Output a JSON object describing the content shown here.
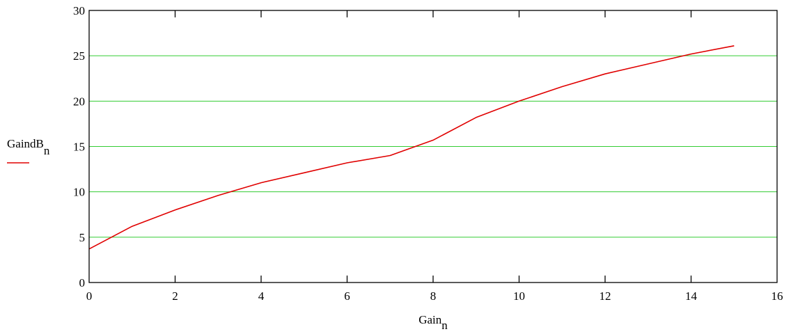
{
  "chart_data": {
    "type": "line",
    "x": [
      0,
      1,
      2,
      3,
      4,
      5,
      6,
      7,
      8,
      9,
      10,
      11,
      12,
      13,
      14,
      15
    ],
    "series": [
      {
        "name": "",
        "values": [
          3.7,
          6.2,
          8.0,
          9.6,
          11.0,
          12.1,
          13.2,
          14.0,
          15.7,
          18.2,
          20.0,
          21.6,
          23.0,
          24.1,
          25.2,
          26.1
        ]
      }
    ],
    "xlabel": "Gain",
    "xlabel_sub": "n",
    "ylabel": "GaindB",
    "ylabel_sub": "n",
    "xlim": [
      0,
      16
    ],
    "ylim": [
      0,
      30
    ],
    "x_ticks": [
      "0",
      "2",
      "4",
      "6",
      "8",
      "10",
      "12",
      "14",
      "16"
    ],
    "y_ticks": [
      "0",
      "5",
      "10",
      "15",
      "20",
      "25",
      "30"
    ],
    "grid": "horizontal",
    "colors": {
      "line": "#e00000",
      "grid": "#33cc33",
      "axes": "#000000"
    }
  }
}
